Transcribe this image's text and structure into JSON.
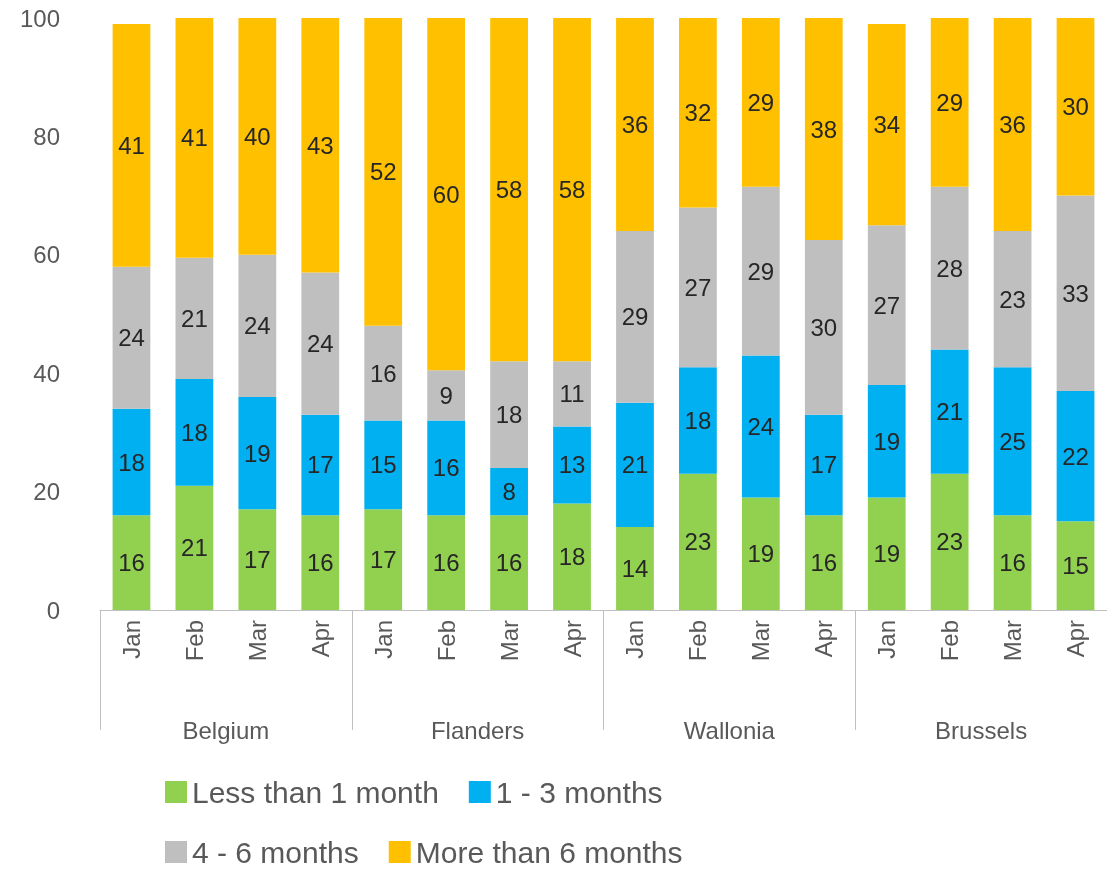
{
  "chart_data": {
    "type": "bar",
    "stacked": true,
    "data_labels": true,
    "legend": "bottom",
    "grid": false,
    "categories": [
      "Jan",
      "Feb",
      "Mar",
      "Apr",
      "Jan",
      "Feb",
      "Mar",
      "Apr",
      "Jan",
      "Feb",
      "Mar",
      "Apr",
      "Jan",
      "Feb",
      "Mar",
      "Apr"
    ],
    "annotations": [
      "Belgium",
      "Flanders",
      "Wallonia",
      "Brussels"
    ],
    "ylim": [
      0,
      100
    ],
    "yticks": [
      0,
      20,
      40,
      60,
      80,
      100
    ],
    "series": [
      {
        "name": "Less than 1 month",
        "color": "#92d050",
        "values": [
          16,
          21,
          17,
          16,
          17,
          16,
          16,
          18,
          14,
          23,
          19,
          16,
          19,
          23,
          16,
          15
        ]
      },
      {
        "name": "1 - 3 months",
        "color": "#00b0f0",
        "values": [
          18,
          18,
          19,
          17,
          15,
          16,
          8,
          13,
          21,
          18,
          24,
          17,
          19,
          21,
          25,
          22
        ]
      },
      {
        "name": "4 - 6 months",
        "color": "#bfbfbf",
        "values": [
          24,
          20.5,
          24,
          24,
          16,
          8.5,
          18,
          11,
          29,
          27,
          28.5,
          29.5,
          27,
          27.5,
          23,
          33
        ],
        "value_labels": [
          "24",
          "21",
          "24",
          "24",
          "16",
          "9",
          "18",
          "11",
          "29",
          "27",
          "29",
          "30",
          "27",
          "28",
          "23",
          "33"
        ]
      },
      {
        "name": "More than 6 months",
        "color": "#ffc000",
        "values": [
          41,
          40.5,
          40,
          43,
          52,
          59.5,
          58,
          58,
          36,
          32,
          28.5,
          37.5,
          34,
          28.5,
          36,
          30
        ],
        "value_labels": [
          "41",
          "41",
          "40",
          "43",
          "52",
          "60",
          "58",
          "58",
          "36",
          "32",
          "29",
          "38",
          "34",
          "29",
          "36",
          "30"
        ]
      }
    ]
  }
}
